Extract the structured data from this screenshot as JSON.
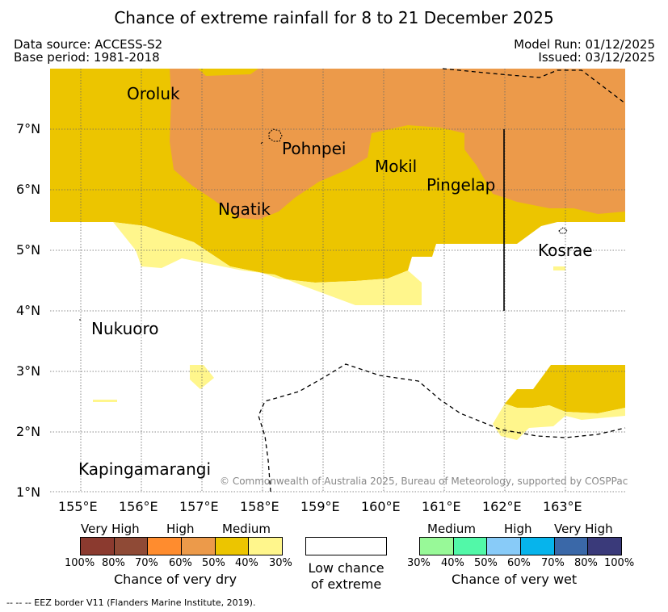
{
  "title": "Chance of extreme rainfall for 8 to 21 December 2025",
  "meta": {
    "data_source": "Data source: ACCESS-S2",
    "base_period": "Base period: 1981-2018",
    "model_run": "Model Run: 01/12/2025",
    "issued": "Issued: 03/12/2025"
  },
  "axes": {
    "x_ticks": [
      "155°E",
      "156°E",
      "157°E",
      "158°E",
      "159°E",
      "160°E",
      "161°E",
      "162°E",
      "163°E"
    ],
    "y_ticks": [
      "7°N",
      "6°N",
      "5°N",
      "4°N",
      "3°N",
      "2°N",
      "1°N"
    ],
    "lon_range": [
      154.5,
      164.0
    ],
    "lat_range": [
      1.0,
      8.0
    ]
  },
  "places": [
    "Oroluk",
    "Pohnpei",
    "Mokil",
    "Pingelap",
    "Ngatik",
    "Kosrae",
    "Nukuoro",
    "Kapingamarangi"
  ],
  "copyright": "© Commonwealth of Australia 2025, Bureau of Meteorology, supported by COSPPac",
  "legend": {
    "dry": {
      "headers": [
        "Very High",
        "High",
        "Medium"
      ],
      "colors": [
        "#8b3a2f",
        "#8f4a36",
        "#ff8c2e",
        "#ec9a4a",
        "#ecc500",
        "#fff68c"
      ],
      "percents": [
        "100%",
        "80%",
        "70%",
        "60%",
        "50%",
        "40%",
        "30%"
      ],
      "caption": "Chance of very dry"
    },
    "low": {
      "line1": "Low chance",
      "line2": "of extreme"
    },
    "wet": {
      "headers": [
        "Medium",
        "High",
        "Very High"
      ],
      "colors": [
        "#98f998",
        "#52f8a8",
        "#88cbf8",
        "#06b4ec",
        "#3a68a8",
        "#3a3a7a"
      ],
      "percents": [
        "30%",
        "40%",
        "50%",
        "60%",
        "70%",
        "80%",
        "100%"
      ],
      "caption": "Chance of very wet"
    }
  },
  "footnote": "--  --  -- EEZ border V11 (Flanders Marine Institute, 2019)."
}
